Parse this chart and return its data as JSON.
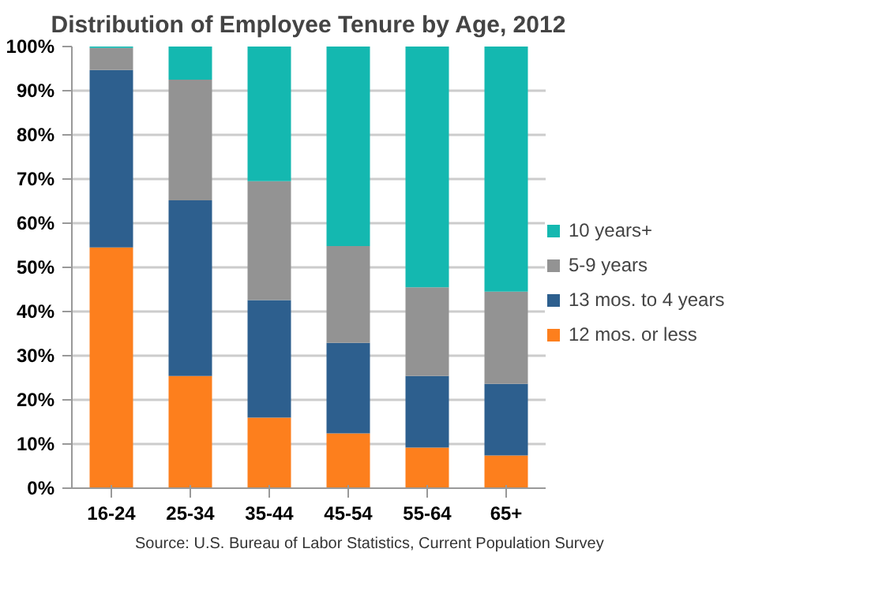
{
  "chart_data": {
    "type": "bar",
    "stacked": true,
    "title": "Distribution of Employee Tenure by Age, 2012",
    "categories": [
      "16-24",
      "25-34",
      "35-44",
      "45-54",
      "55-64",
      "65+"
    ],
    "series": [
      {
        "name": "12 mos. or less",
        "color": "#fd7f1d",
        "values": [
          54.5,
          25.4,
          16.0,
          12.4,
          9.2,
          7.4
        ]
      },
      {
        "name": "13 mos. to 4 years",
        "color": "#2d5f8e",
        "values": [
          40.2,
          39.8,
          26.6,
          20.5,
          16.2,
          16.2
        ]
      },
      {
        "name": "5-9 years",
        "color": "#939393",
        "values": [
          5.0,
          27.3,
          26.9,
          21.9,
          20.1,
          20.9
        ]
      },
      {
        "name": "10 years+",
        "color": "#14b8b0",
        "values": [
          0.3,
          7.5,
          30.5,
          45.2,
          54.5,
          55.5
        ]
      }
    ],
    "ylim": [
      0,
      100
    ],
    "yticks": [
      {
        "value": 0,
        "label": "0%"
      },
      {
        "value": 10,
        "label": "10%"
      },
      {
        "value": 20,
        "label": "20%"
      },
      {
        "value": 30,
        "label": "30%"
      },
      {
        "value": 40,
        "label": "40%"
      },
      {
        "value": 50,
        "label": "50%"
      },
      {
        "value": 60,
        "label": "60%"
      },
      {
        "value": 70,
        "label": "70%"
      },
      {
        "value": 80,
        "label": "80%"
      },
      {
        "value": 90,
        "label": "90%"
      },
      {
        "value": 100,
        "label": "100%"
      }
    ],
    "grid": "y",
    "legend": "right",
    "annotations": [
      "Source: U.S. Bureau of Labor Statistics, Current Population Survey"
    ]
  }
}
